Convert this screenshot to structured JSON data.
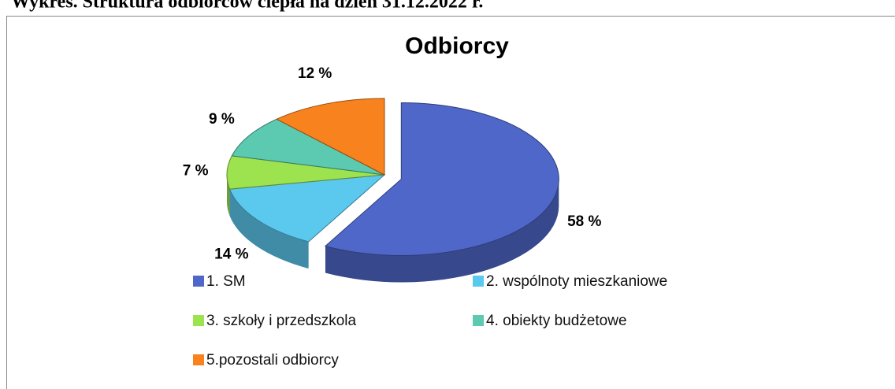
{
  "caption": "Wykres. Struktura odbiorców ciepła na dzień 31.12.2022 r.",
  "chart_data": {
    "type": "pie",
    "title": "Odbiorcy",
    "categories": [
      "1. SM",
      "2. wspólnoty mieszkaniowe",
      "3. szkoły i przedszkola",
      "4. obiekty budżetowe",
      "5.pozostali odbiorcy"
    ],
    "values": [
      58,
      14,
      7,
      9,
      12
    ],
    "value_labels": [
      "58 %",
      "14 %",
      "7 %",
      "9 %",
      "12 %"
    ],
    "colors": [
      "#4f67c8",
      "#5bc8ee",
      "#9de24f",
      "#5ccab0",
      "#f7821e"
    ],
    "legend": "bottom"
  }
}
